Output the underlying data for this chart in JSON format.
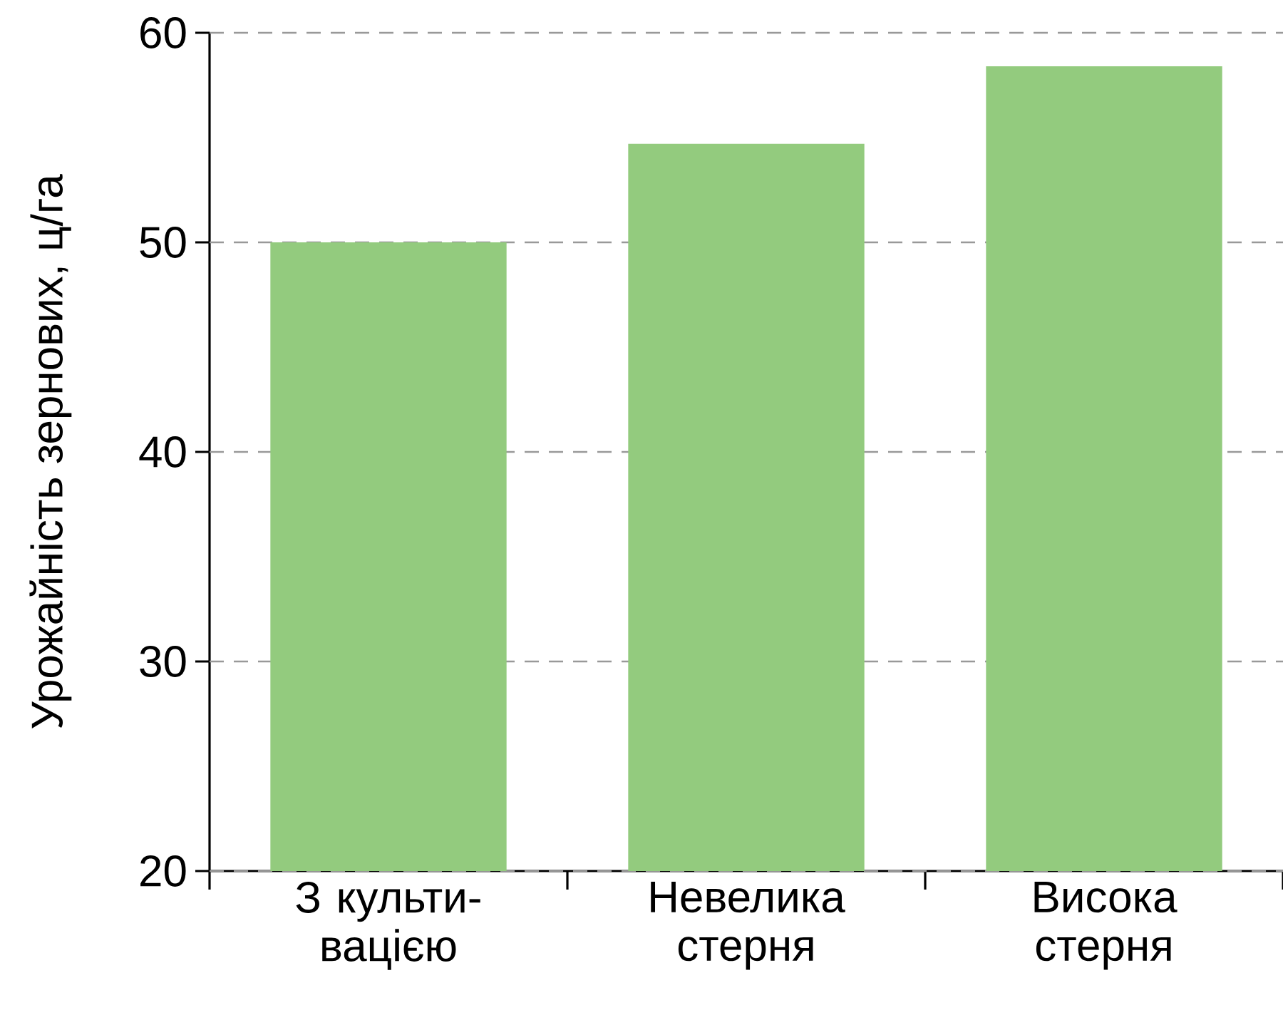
{
  "chart_data": {
    "type": "bar",
    "ylabel": "Урожайність зернових, ц/га",
    "categories": [
      "З культи- вацією",
      "Невелика стерня",
      "Висока стерня"
    ],
    "values": [
      50,
      54.7,
      58.4
    ],
    "color": "#93cb7e",
    "ylim": [
      20,
      60
    ],
    "yticks": [
      20,
      30,
      40,
      50,
      60
    ],
    "grid": "y"
  }
}
